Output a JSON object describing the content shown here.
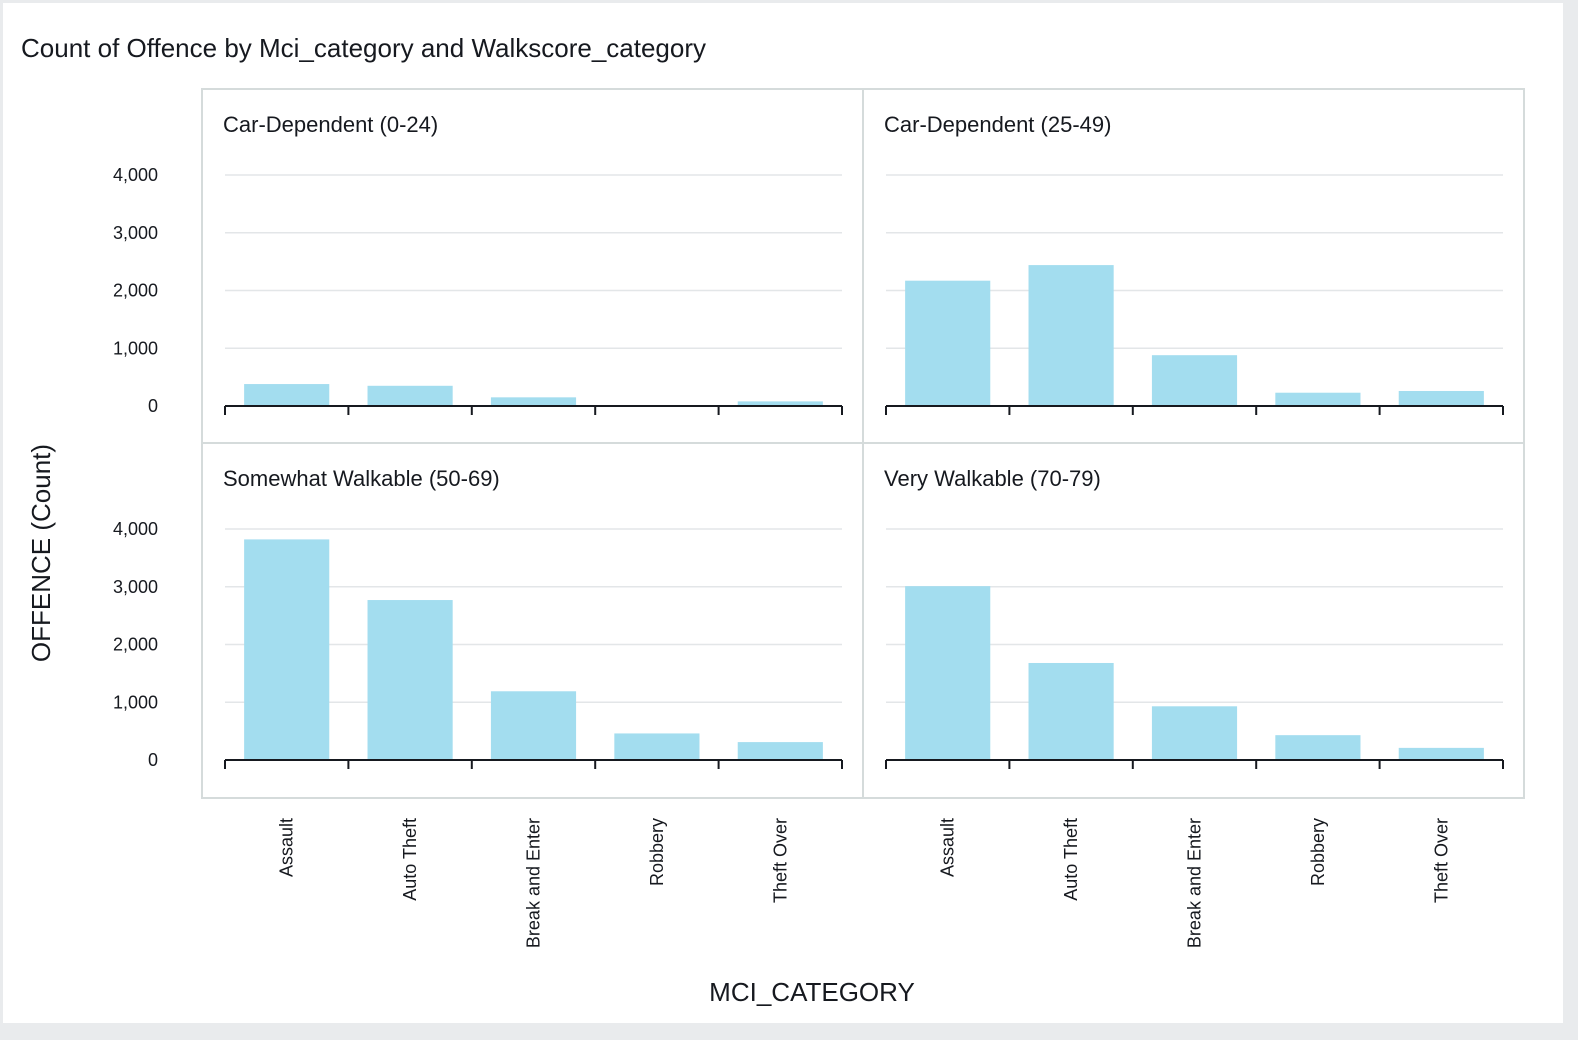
{
  "title": "Count of Offence by Mci_category and Walkscore_category",
  "chart_data": {
    "type": "bar",
    "layout": "small-multiples-2x2",
    "title": "Count of Offence by Mci_category and Walkscore_category",
    "xlabel": "MCI_CATEGORY",
    "ylabel": "OFFENCE (Count)",
    "categories": [
      "Assault",
      "Auto Theft",
      "Break and Enter",
      "Robbery",
      "Theft Over"
    ],
    "yticks": [
      "0",
      "1,000",
      "2,000",
      "3,000",
      "4,000"
    ],
    "ylim": [
      0,
      4000
    ],
    "grid": true,
    "bar_color": "#a3ddef",
    "panels": [
      {
        "name": "Car-Dependent (0-24)",
        "values": [
          380,
          350,
          150,
          15,
          80
        ]
      },
      {
        "name": "Car-Dependent (25-49)",
        "values": [
          2170,
          2440,
          880,
          230,
          260
        ]
      },
      {
        "name": "Somewhat Walkable (50-69)",
        "values": [
          3820,
          2770,
          1190,
          460,
          310
        ]
      },
      {
        "name": "Very Walkable (70-79)",
        "values": [
          3010,
          1680,
          930,
          430,
          210
        ]
      }
    ]
  }
}
